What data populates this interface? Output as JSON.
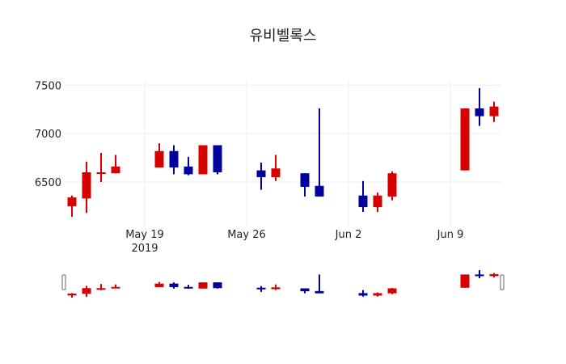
{
  "chart_data": {
    "type": "candlestick",
    "title": "유비벨록스",
    "xlabel": "",
    "ylabel": "",
    "ylim": [
      6040,
      7545
    ],
    "xlim": [
      "2019-05-13T12:00",
      "2019-06-12T12:00"
    ],
    "grid": true,
    "increasing_color": "#d60000",
    "decreasing_color": "#00009c",
    "y_ticks": [
      6500,
      7000,
      7500
    ],
    "x_ticks": [
      {
        "date": "2019-05-19",
        "label": "May 19",
        "sublabel": "2019"
      },
      {
        "date": "2019-05-26",
        "label": "May 26"
      },
      {
        "date": "2019-06-02",
        "label": "Jun 2"
      },
      {
        "date": "2019-06-09",
        "label": "Jun 9"
      }
    ],
    "rangeslider": true,
    "candles": [
      {
        "date": "2019-05-14",
        "open": 6250,
        "high": 6360,
        "low": 6140,
        "close": 6340
      },
      {
        "date": "2019-05-15",
        "open": 6330,
        "high": 6710,
        "low": 6180,
        "close": 6600
      },
      {
        "date": "2019-05-16",
        "open": 6590,
        "high": 6800,
        "low": 6500,
        "close": 6600
      },
      {
        "date": "2019-05-17",
        "open": 6590,
        "high": 6780,
        "low": 6590,
        "close": 6660
      },
      {
        "date": "2019-05-20",
        "open": 6650,
        "high": 6900,
        "low": 6650,
        "close": 6820
      },
      {
        "date": "2019-05-21",
        "open": 6820,
        "high": 6880,
        "low": 6580,
        "close": 6650
      },
      {
        "date": "2019-05-22",
        "open": 6660,
        "high": 6760,
        "low": 6570,
        "close": 6580
      },
      {
        "date": "2019-05-23",
        "open": 6580,
        "high": 6880,
        "low": 6580,
        "close": 6880
      },
      {
        "date": "2019-05-24",
        "open": 6880,
        "high": 6880,
        "low": 6580,
        "close": 6600
      },
      {
        "date": "2019-05-27",
        "open": 6620,
        "high": 6700,
        "low": 6420,
        "close": 6550
      },
      {
        "date": "2019-05-28",
        "open": 6550,
        "high": 6780,
        "low": 6510,
        "close": 6640
      },
      {
        "date": "2019-05-30",
        "open": 6590,
        "high": 6590,
        "low": 6350,
        "close": 6450
      },
      {
        "date": "2019-05-31",
        "open": 6460,
        "high": 7260,
        "low": 6350,
        "close": 6350
      },
      {
        "date": "2019-06-03",
        "open": 6360,
        "high": 6510,
        "low": 6190,
        "close": 6240
      },
      {
        "date": "2019-06-04",
        "open": 6240,
        "high": 6390,
        "low": 6190,
        "close": 6360
      },
      {
        "date": "2019-06-05",
        "open": 6350,
        "high": 6610,
        "low": 6310,
        "close": 6590
      },
      {
        "date": "2019-06-10",
        "open": 6620,
        "high": 7260,
        "low": 6620,
        "close": 7260
      },
      {
        "date": "2019-06-11",
        "open": 7260,
        "high": 7470,
        "low": 7080,
        "close": 7180
      },
      {
        "date": "2019-06-12",
        "open": 7180,
        "high": 7330,
        "low": 7120,
        "close": 7280
      }
    ]
  }
}
